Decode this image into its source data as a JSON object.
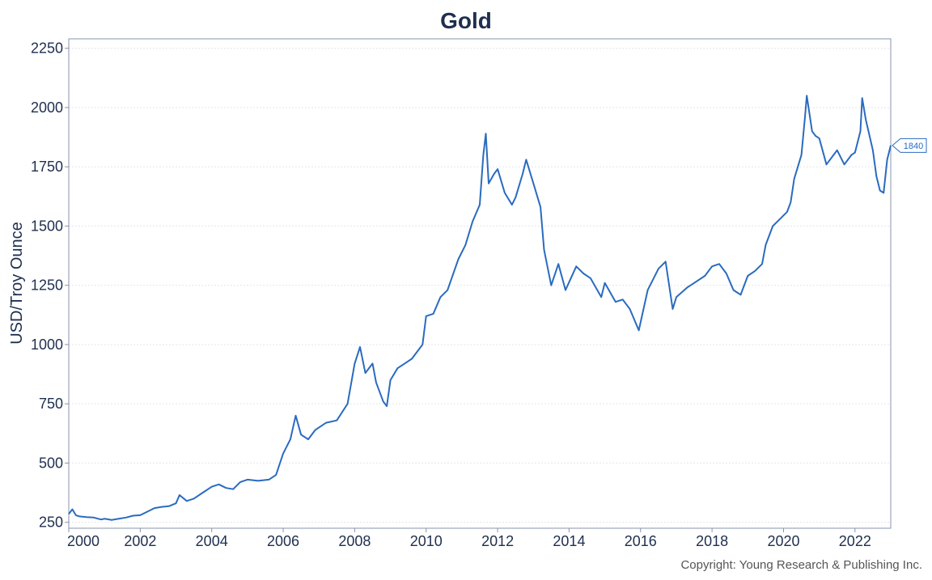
{
  "chart_data": {
    "type": "line",
    "title": "Gold",
    "xlabel": "",
    "ylabel": "USD/Troy Ounce",
    "xlim": [
      2000,
      2023
    ],
    "ylim": [
      225,
      2290
    ],
    "xticks": [
      "2000",
      "2002",
      "2004",
      "2006",
      "2008",
      "2010",
      "2012",
      "2014",
      "2016",
      "2018",
      "2020",
      "2022"
    ],
    "yticks": [
      "250",
      "500",
      "750",
      "1000",
      "1250",
      "1500",
      "1750",
      "2000",
      "2250"
    ],
    "grid": true,
    "line_color": "#2a6bbf",
    "series": [
      {
        "name": "",
        "x": [
          2000.0,
          2000.1,
          2000.2,
          2000.3,
          2000.5,
          2000.7,
          2000.9,
          2001.0,
          2001.2,
          2001.4,
          2001.6,
          2001.8,
          2002.0,
          2002.2,
          2002.4,
          2002.6,
          2002.8,
          2003.0,
          2003.1,
          2003.3,
          2003.5,
          2003.7,
          2004.0,
          2004.2,
          2004.4,
          2004.6,
          2004.8,
          2005.0,
          2005.3,
          2005.6,
          2005.8,
          2006.0,
          2006.2,
          2006.35,
          2006.5,
          2006.7,
          2006.9,
          2007.2,
          2007.5,
          2007.8,
          2008.0,
          2008.15,
          2008.3,
          2008.5,
          2008.6,
          2008.8,
          2008.9,
          2009.0,
          2009.2,
          2009.4,
          2009.6,
          2009.9,
          2010.0,
          2010.2,
          2010.4,
          2010.6,
          2010.9,
          2011.1,
          2011.3,
          2011.5,
          2011.6,
          2011.67,
          2011.75,
          2011.9,
          2012.0,
          2012.2,
          2012.4,
          2012.5,
          2012.7,
          2012.8,
          2013.0,
          2013.2,
          2013.3,
          2013.5,
          2013.7,
          2013.9,
          2014.2,
          2014.4,
          2014.6,
          2014.9,
          2015.0,
          2015.3,
          2015.5,
          2015.7,
          2015.95,
          2016.2,
          2016.5,
          2016.7,
          2016.9,
          2017.0,
          2017.3,
          2017.5,
          2017.8,
          2018.0,
          2018.2,
          2018.4,
          2018.6,
          2018.8,
          2019.0,
          2019.2,
          2019.4,
          2019.5,
          2019.7,
          2019.9,
          2020.1,
          2020.2,
          2020.3,
          2020.5,
          2020.6,
          2020.65,
          2020.8,
          2020.9,
          2021.0,
          2021.2,
          2021.4,
          2021.5,
          2021.7,
          2021.9,
          2022.0,
          2022.15,
          2022.2,
          2022.3,
          2022.5,
          2022.6,
          2022.7,
          2022.8,
          2022.9,
          2023.0
        ],
        "values": [
          285,
          305,
          280,
          275,
          272,
          270,
          262,
          265,
          260,
          265,
          270,
          278,
          280,
          295,
          310,
          315,
          318,
          330,
          365,
          340,
          350,
          370,
          400,
          410,
          395,
          390,
          420,
          430,
          425,
          430,
          450,
          540,
          600,
          700,
          620,
          600,
          640,
          670,
          680,
          750,
          920,
          990,
          880,
          920,
          840,
          760,
          740,
          850,
          900,
          920,
          940,
          1000,
          1120,
          1130,
          1200,
          1230,
          1360,
          1420,
          1520,
          1590,
          1800,
          1890,
          1680,
          1720,
          1740,
          1640,
          1590,
          1620,
          1720,
          1780,
          1680,
          1580,
          1400,
          1250,
          1340,
          1230,
          1330,
          1300,
          1280,
          1200,
          1260,
          1180,
          1190,
          1150,
          1060,
          1230,
          1320,
          1350,
          1150,
          1200,
          1240,
          1260,
          1290,
          1330,
          1340,
          1300,
          1230,
          1210,
          1290,
          1310,
          1340,
          1420,
          1500,
          1530,
          1560,
          1600,
          1700,
          1800,
          1960,
          2050,
          1900,
          1880,
          1870,
          1760,
          1800,
          1820,
          1760,
          1800,
          1810,
          1900,
          2040,
          1950,
          1820,
          1710,
          1650,
          1640,
          1780,
          1840
        ]
      }
    ],
    "end_label": "1840"
  },
  "footer": {
    "copyright": "Copyright: Young Research & Publishing Inc."
  }
}
